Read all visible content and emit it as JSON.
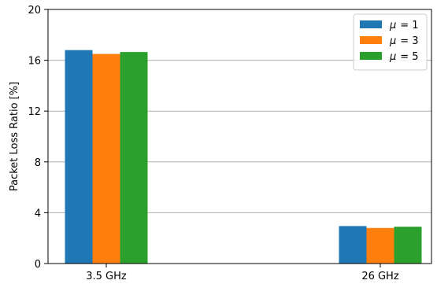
{
  "chart_data": {
    "type": "bar",
    "categories": [
      "3.5 GHz",
      "26 GHz"
    ],
    "series": [
      {
        "name": "μ = 1",
        "legend_symbol": "μ",
        "legend_value": "= 1",
        "color": "#1f77b4",
        "values": [
          16.8,
          2.95
        ]
      },
      {
        "name": "μ = 3",
        "legend_symbol": "μ",
        "legend_value": "= 3",
        "color": "#ff7f0e",
        "values": [
          16.5,
          2.8
        ]
      },
      {
        "name": "μ = 5",
        "legend_symbol": "μ",
        "legend_value": "= 5",
        "color": "#2ca02c",
        "values": [
          16.65,
          2.9
        ]
      }
    ],
    "ylabel": "Packet Loss Ratio [%]",
    "xlabel": "",
    "ylim": [
      0,
      20
    ],
    "yticks": [
      "0",
      "4",
      "8",
      "12",
      "16",
      "20"
    ],
    "grid": "horizontal",
    "legend_position": "top-right"
  }
}
